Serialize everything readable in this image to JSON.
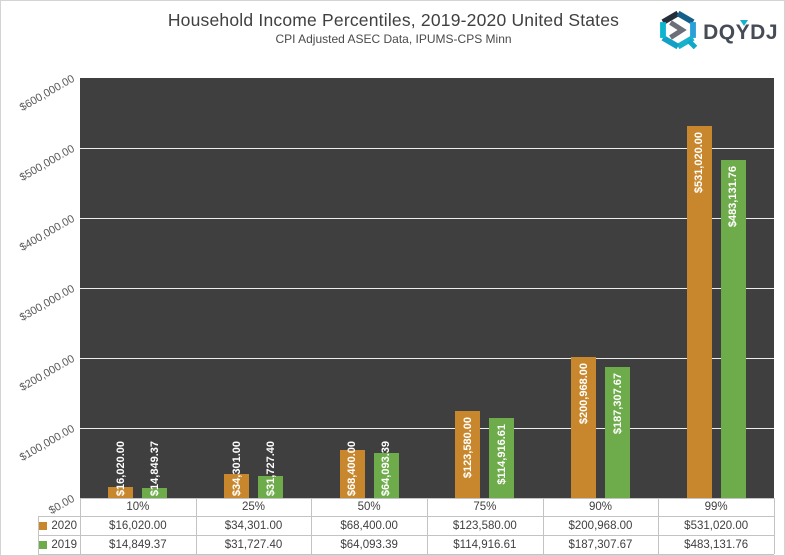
{
  "header": {
    "title": "Household Income Percentiles, 2019-2020 United States",
    "subtitle": "CPI Adjusted ASEC Data, IPUMS-CPS Minn",
    "logo_text": "DQYDJ"
  },
  "chart_data": {
    "type": "bar",
    "title": "Household Income Percentiles, 2019-2020 United States",
    "subtitle": "CPI Adjusted ASEC Data, IPUMS-CPS Minn",
    "categories": [
      "10%",
      "25%",
      "50%",
      "75%",
      "90%",
      "99%"
    ],
    "series": [
      {
        "name": "2020",
        "color": "#c8872c",
        "values": [
          16020.0,
          34301.0,
          68400.0,
          123580.0,
          200968.0,
          531020.0
        ],
        "labels": [
          "$16,020.00",
          "$34,301.00",
          "$68,400.00",
          "$123,580.00",
          "$200,968.00",
          "$531,020.00"
        ]
      },
      {
        "name": "2019",
        "color": "#6eac4b",
        "values": [
          14849.37,
          31727.4,
          64093.39,
          114916.61,
          187307.67,
          483131.76
        ],
        "labels": [
          "$14,849.37",
          "$31,727.40",
          "$64,093.39",
          "$114,916.61",
          "$187,307.67",
          "$483,131.76"
        ]
      }
    ],
    "xlabel": "",
    "ylabel": "",
    "ylim": [
      0,
      600000
    ],
    "ytick_step": 100000,
    "ytick_labels": [
      "$0.00",
      "$100,000.00",
      "$200,000.00",
      "$300,000.00",
      "$400,000.00",
      "$500,000.00",
      "$600,000.00"
    ],
    "grid": "horizontal major gridlines every 100000",
    "legend_position": "data-table keys bottom-left",
    "plot_bg": "#3f3f3f",
    "gridline_color": "#ededed",
    "data_label_color": "#ffffff"
  }
}
